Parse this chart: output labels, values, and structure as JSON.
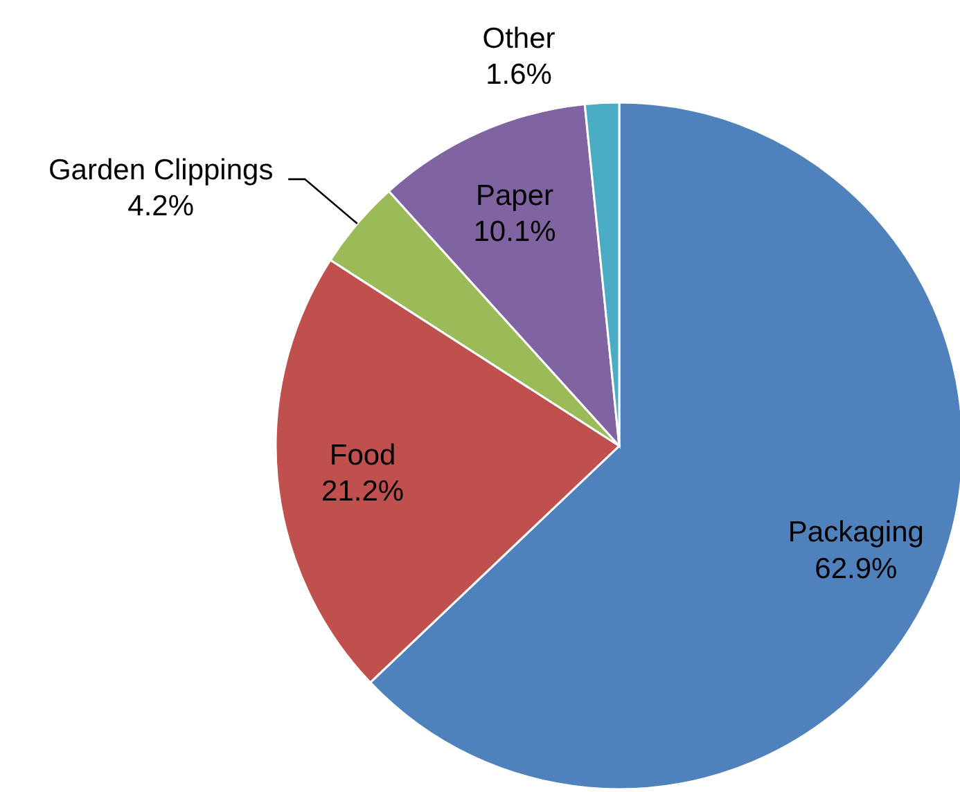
{
  "chart_data": {
    "type": "pie",
    "categories": [
      "Packaging",
      "Food",
      "Garden Clippings",
      "Paper",
      "Other"
    ],
    "values": [
      62.9,
      21.2,
      4.2,
      10.1,
      1.6
    ],
    "colors": [
      "#4f81bd",
      "#c0504d",
      "#9bbb59",
      "#8064a2",
      "#4bacc6"
    ],
    "value_labels": [
      "62.9%",
      "21.2%",
      "4.2%",
      "10.1%",
      "1.6%"
    ]
  }
}
